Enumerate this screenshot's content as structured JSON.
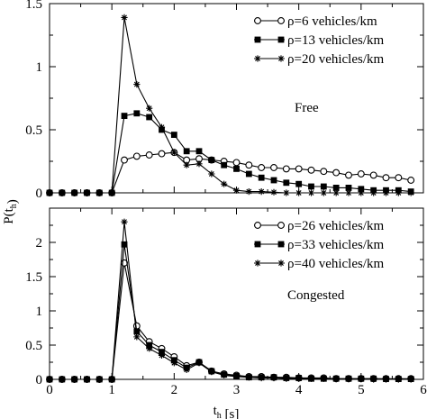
{
  "chart_data": [
    {
      "type": "line",
      "annotation": "Free",
      "xlabel": "",
      "ylabel": "P(t_h)",
      "xlim": [
        0,
        6
      ],
      "ylim": [
        0,
        1.5
      ],
      "xticks": [
        "0",
        "1",
        "2",
        "3",
        "4",
        "5",
        "6"
      ],
      "show_x_tick_labels": false,
      "yticks": [
        0,
        0.5,
        1,
        1.5
      ],
      "ytick_labels": [
        "0",
        "0.5",
        "1",
        "1.5"
      ],
      "legend_position": "top-right",
      "grid": false,
      "series": [
        {
          "name": "ρ=6 vehicles/km",
          "marker": "open-circle",
          "x": [
            0,
            0.2,
            0.4,
            0.6,
            0.8,
            1.0,
            1.2,
            1.4,
            1.6,
            1.8,
            2.0,
            2.2,
            2.4,
            2.6,
            2.8,
            3.0,
            3.2,
            3.4,
            3.6,
            3.8,
            4.0,
            4.2,
            4.4,
            4.6,
            4.8,
            5.0,
            5.2,
            5.4,
            5.6,
            5.8
          ],
          "y": [
            0,
            0,
            0,
            0,
            0,
            0,
            0.26,
            0.29,
            0.3,
            0.31,
            0.32,
            0.26,
            0.27,
            0.26,
            0.25,
            0.24,
            0.22,
            0.2,
            0.2,
            0.19,
            0.19,
            0.18,
            0.17,
            0.16,
            0.14,
            0.15,
            0.14,
            0.12,
            0.12,
            0.1
          ]
        },
        {
          "name": "ρ=13 vehicles/km",
          "marker": "filled-square",
          "x": [
            0,
            0.2,
            0.4,
            0.6,
            0.8,
            1.0,
            1.2,
            1.4,
            1.6,
            1.8,
            2.0,
            2.2,
            2.4,
            2.6,
            2.8,
            3.0,
            3.2,
            3.4,
            3.6,
            3.8,
            4.0,
            4.2,
            4.4,
            4.6,
            4.8,
            5.0,
            5.2,
            5.4,
            5.6,
            5.8
          ],
          "y": [
            0,
            0,
            0,
            0,
            0,
            0,
            0.61,
            0.63,
            0.6,
            0.5,
            0.46,
            0.33,
            0.33,
            0.26,
            0.22,
            0.19,
            0.15,
            0.12,
            0.1,
            0.08,
            0.07,
            0.05,
            0.05,
            0.04,
            0.04,
            0.03,
            0.02,
            0.02,
            0.02,
            0.01
          ]
        },
        {
          "name": "ρ=20 vehicles/km",
          "marker": "star",
          "x": [
            0,
            0.2,
            0.4,
            0.6,
            0.8,
            1.0,
            1.2,
            1.4,
            1.6,
            1.8,
            2.0,
            2.2,
            2.4,
            2.6,
            2.8,
            3.0,
            3.2,
            3.4,
            3.6,
            3.8,
            4.0,
            4.2,
            4.4,
            4.6,
            4.8,
            5.0,
            5.2,
            5.4,
            5.6,
            5.8
          ],
          "y": [
            0,
            0,
            0,
            0,
            0,
            0,
            1.39,
            0.86,
            0.67,
            0.52,
            0.32,
            0.22,
            0.23,
            0.15,
            0.07,
            0.02,
            0.01,
            0.01,
            0.005,
            0,
            0,
            0,
            0,
            0,
            0,
            0,
            0,
            0,
            0,
            0
          ]
        }
      ]
    },
    {
      "type": "line",
      "annotation": "Congested",
      "xlabel": "t_h [s]",
      "ylabel": "",
      "xlim": [
        0,
        6
      ],
      "ylim": [
        0,
        2.5
      ],
      "xticks": [
        "0",
        "1",
        "2",
        "3",
        "4",
        "5",
        "6"
      ],
      "show_x_tick_labels": true,
      "yticks": [
        0,
        0.5,
        1,
        1.5,
        2
      ],
      "ytick_labels": [
        "0",
        "0.5",
        "1",
        "1.5",
        "2"
      ],
      "legend_position": "top-right",
      "grid": false,
      "series": [
        {
          "name": "ρ=26 vehicles/km",
          "marker": "open-circle",
          "x": [
            0,
            0.2,
            0.4,
            0.6,
            0.8,
            1.0,
            1.2,
            1.4,
            1.6,
            1.8,
            2.0,
            2.2,
            2.4,
            2.6,
            2.8,
            3.0,
            3.2,
            3.4,
            3.6,
            3.8,
            4.0,
            4.2,
            4.4,
            4.6,
            4.8,
            5.0,
            5.2,
            5.4,
            5.6,
            5.8
          ],
          "y": [
            0,
            0,
            0,
            0,
            0,
            0,
            1.7,
            0.78,
            0.55,
            0.45,
            0.33,
            0.2,
            0.25,
            0.12,
            0.08,
            0.06,
            0.04,
            0.04,
            0.03,
            0.03,
            0.02,
            0.02,
            0.02,
            0.01,
            0.01,
            0.01,
            0.01,
            0.01,
            0.01,
            0.01
          ]
        },
        {
          "name": "ρ=33 vehicles/km",
          "marker": "filled-square",
          "x": [
            0,
            0.2,
            0.4,
            0.6,
            0.8,
            1.0,
            1.2,
            1.4,
            1.6,
            1.8,
            2.0,
            2.2,
            2.4,
            2.6,
            2.8,
            3.0,
            3.2,
            3.4,
            3.6,
            3.8,
            4.0,
            4.2,
            4.4,
            4.6,
            4.8,
            5.0,
            5.2,
            5.4,
            5.6,
            5.8
          ],
          "y": [
            0,
            0,
            0,
            0,
            0,
            0,
            1.97,
            0.7,
            0.5,
            0.4,
            0.28,
            0.17,
            0.25,
            0.12,
            0.07,
            0.05,
            0.03,
            0.03,
            0.03,
            0.02,
            0.02,
            0.01,
            0.01,
            0.01,
            0.01,
            0.01,
            0.01,
            0.005,
            0.005,
            0.005
          ]
        },
        {
          "name": "ρ=40 vehicles/km",
          "marker": "star",
          "x": [
            0,
            0.2,
            0.4,
            0.6,
            0.8,
            1.0,
            1.2,
            1.4,
            1.6,
            1.8,
            2.0,
            2.2,
            2.4,
            2.6,
            2.8,
            3.0,
            3.2,
            3.4,
            3.6,
            3.8,
            4.0,
            4.2,
            4.4,
            4.6,
            4.8,
            5.0,
            5.2,
            5.4,
            5.6,
            5.8
          ],
          "y": [
            0,
            0,
            0,
            0,
            0,
            0,
            2.3,
            0.62,
            0.45,
            0.35,
            0.24,
            0.14,
            0.24,
            0.11,
            0.06,
            0.04,
            0.03,
            0.02,
            0.02,
            0.01,
            0.01,
            0.01,
            0.01,
            0.005,
            0.005,
            0.005,
            0,
            0,
            0,
            0
          ]
        }
      ]
    }
  ]
}
